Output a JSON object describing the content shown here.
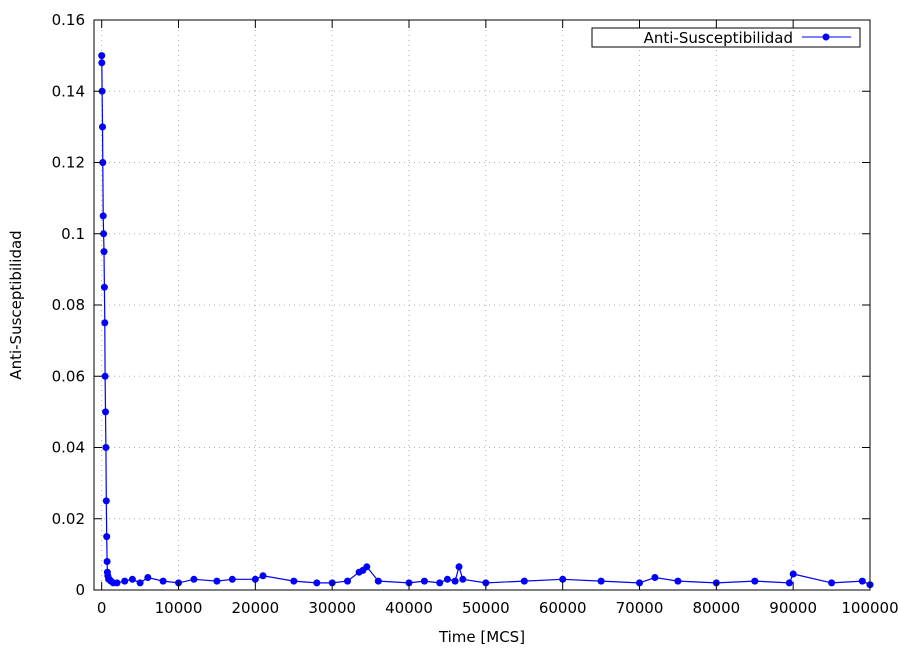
{
  "chart_data": {
    "type": "line",
    "xlabel": "Time [MCS]",
    "ylabel": "Anti-Susceptibilidad",
    "xlim": [
      -1000,
      100000
    ],
    "ylim": [
      0,
      0.16
    ],
    "x_ticks": [
      0,
      10000,
      20000,
      30000,
      40000,
      50000,
      60000,
      70000,
      80000,
      90000,
      100000
    ],
    "y_ticks": [
      0,
      0.02,
      0.04,
      0.06,
      0.08,
      0.1,
      0.12,
      0.14,
      0.16
    ],
    "x_tick_labels": [
      "0",
      "10000",
      "20000",
      "30000",
      "40000",
      "50000",
      "60000",
      "70000",
      "80000",
      "90000",
      "100000"
    ],
    "y_tick_labels": [
      "0",
      "0.02",
      "0.04",
      "0.06",
      "0.08",
      "0.1",
      "0.12",
      "0.14",
      "0.16"
    ],
    "grid": true,
    "grid_style": "dotted",
    "legend_position": "top-right",
    "series": [
      {
        "name": "Anti-Susceptibilidad",
        "color": "#0000ff",
        "marker": "circle",
        "x": [
          0,
          20,
          50,
          100,
          150,
          200,
          250,
          300,
          350,
          400,
          450,
          500,
          550,
          600,
          650,
          700,
          750,
          800,
          900,
          1000,
          1200,
          1500,
          2000,
          3000,
          4000,
          5000,
          6000,
          8000,
          10000,
          12000,
          15000,
          17000,
          20000,
          21000,
          25000,
          28000,
          30000,
          32000,
          33500,
          34000,
          34500,
          36000,
          40000,
          42000,
          44000,
          45000,
          46000,
          46500,
          47000,
          50000,
          55000,
          60000,
          65000,
          70000,
          72000,
          75000,
          80000,
          85000,
          89500,
          90000,
          95000,
          99000,
          100000
        ],
        "y": [
          0.15,
          0.148,
          0.14,
          0.13,
          0.12,
          0.105,
          0.1,
          0.095,
          0.085,
          0.075,
          0.06,
          0.05,
          0.04,
          0.025,
          0.015,
          0.008,
          0.005,
          0.004,
          0.003,
          0.003,
          0.0025,
          0.002,
          0.002,
          0.0025,
          0.003,
          0.002,
          0.0035,
          0.0025,
          0.002,
          0.003,
          0.0025,
          0.003,
          0.003,
          0.004,
          0.0025,
          0.002,
          0.002,
          0.0025,
          0.005,
          0.0055,
          0.0065,
          0.0025,
          0.002,
          0.0025,
          0.002,
          0.003,
          0.0025,
          0.0065,
          0.003,
          0.002,
          0.0025,
          0.003,
          0.0025,
          0.002,
          0.0035,
          0.0025,
          0.002,
          0.0025,
          0.002,
          0.0045,
          0.002,
          0.0025,
          0.0015
        ]
      }
    ]
  }
}
